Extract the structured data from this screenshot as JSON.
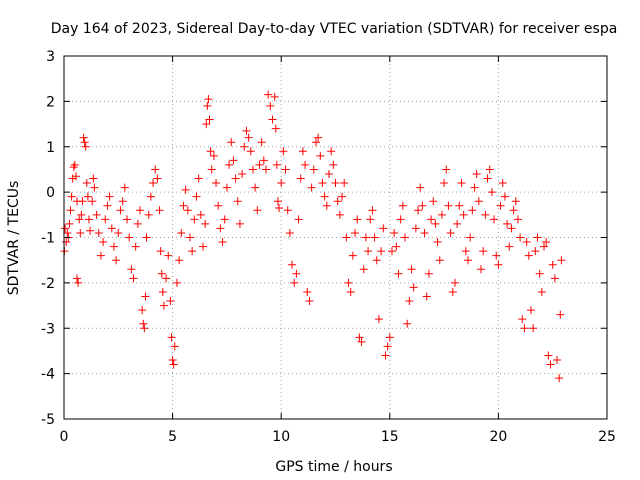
{
  "chart_data": {
    "type": "scatter",
    "title": "Day 164 of 2023, Sidereal Day-to-day VTEC variation (SDTVAR) for receiver espa",
    "xlabel": "GPS time / hours",
    "ylabel": "SDTVAR / TECUs",
    "xlim": [
      0,
      25
    ],
    "ylim": [
      -5,
      3
    ],
    "x_ticks": [
      0,
      5,
      10,
      15,
      20,
      25
    ],
    "y_ticks": [
      -5,
      -4,
      -3,
      -2,
      -1,
      0,
      1,
      2,
      3
    ],
    "x_tick_labels": [
      "0",
      "5",
      "10",
      "15",
      "20",
      "25"
    ],
    "y_tick_labels": [
      "-5",
      "-4",
      "-3",
      "-2",
      "-1",
      "0",
      "1",
      "2",
      "3"
    ],
    "grid": true,
    "marker": "+",
    "marker_color": "#ff0000",
    "series": [
      {
        "name": "SDTVAR",
        "points": [
          [
            0.02,
            -1.3
          ],
          [
            0.05,
            -0.8
          ],
          [
            0.1,
            -1.1
          ],
          [
            0.15,
            -0.9
          ],
          [
            0.2,
            -1.0
          ],
          [
            0.25,
            -0.7
          ],
          [
            0.3,
            -0.4
          ],
          [
            0.35,
            -0.1
          ],
          [
            0.4,
            0.3
          ],
          [
            0.45,
            0.55
          ],
          [
            0.5,
            0.6
          ],
          [
            0.55,
            0.35
          ],
          [
            0.6,
            -0.2
          ],
          [
            0.6,
            -1.9
          ],
          [
            0.65,
            -2.0
          ],
          [
            0.7,
            -0.6
          ],
          [
            0.75,
            -0.9
          ],
          [
            0.8,
            -0.5
          ],
          [
            0.85,
            -0.2
          ],
          [
            0.9,
            1.2
          ],
          [
            0.95,
            1.1
          ],
          [
            1.0,
            1.0
          ],
          [
            1.05,
            0.2
          ],
          [
            1.1,
            -0.1
          ],
          [
            1.15,
            -0.6
          ],
          [
            1.2,
            -0.85
          ],
          [
            1.3,
            -0.2
          ],
          [
            1.35,
            0.3
          ],
          [
            1.4,
            0.1
          ],
          [
            1.5,
            -0.5
          ],
          [
            1.6,
            -0.9
          ],
          [
            1.7,
            -1.4
          ],
          [
            1.8,
            -1.1
          ],
          [
            1.9,
            -0.6
          ],
          [
            2.0,
            -0.3
          ],
          [
            2.1,
            -0.1
          ],
          [
            2.2,
            -0.8
          ],
          [
            2.3,
            -1.2
          ],
          [
            2.4,
            -1.5
          ],
          [
            2.5,
            -0.9
          ],
          [
            2.6,
            -0.4
          ],
          [
            2.7,
            -0.2
          ],
          [
            2.8,
            0.1
          ],
          [
            2.9,
            -0.6
          ],
          [
            3.0,
            -1.0
          ],
          [
            3.1,
            -1.7
          ],
          [
            3.2,
            -1.9
          ],
          [
            3.3,
            -1.2
          ],
          [
            3.4,
            -0.7
          ],
          [
            3.5,
            -0.4
          ],
          [
            3.6,
            -2.6
          ],
          [
            3.65,
            -2.9
          ],
          [
            3.7,
            -3.0
          ],
          [
            3.75,
            -2.3
          ],
          [
            3.8,
            -1.0
          ],
          [
            3.9,
            -0.5
          ],
          [
            4.0,
            -0.1
          ],
          [
            4.1,
            0.2
          ],
          [
            4.2,
            0.5
          ],
          [
            4.3,
            0.3
          ],
          [
            4.4,
            -0.4
          ],
          [
            4.45,
            -1.3
          ],
          [
            4.5,
            -1.8
          ],
          [
            4.55,
            -2.2
          ],
          [
            4.6,
            -2.5
          ],
          [
            4.7,
            -1.9
          ],
          [
            4.8,
            -1.4
          ],
          [
            4.9,
            -2.4
          ],
          [
            4.95,
            -3.2
          ],
          [
            5.0,
            -3.7
          ],
          [
            5.05,
            -3.8
          ],
          [
            5.1,
            -3.4
          ],
          [
            5.2,
            -2.0
          ],
          [
            5.3,
            -1.5
          ],
          [
            5.4,
            -0.9
          ],
          [
            5.5,
            -0.3
          ],
          [
            5.6,
            0.05
          ],
          [
            5.7,
            -0.4
          ],
          [
            5.8,
            -1.0
          ],
          [
            5.9,
            -1.3
          ],
          [
            6.0,
            -0.6
          ],
          [
            6.1,
            -0.1
          ],
          [
            6.2,
            0.3
          ],
          [
            6.3,
            -0.5
          ],
          [
            6.4,
            -1.2
          ],
          [
            6.5,
            -0.7
          ],
          [
            6.55,
            1.5
          ],
          [
            6.6,
            1.9
          ],
          [
            6.65,
            2.05
          ],
          [
            6.7,
            1.6
          ],
          [
            6.75,
            0.9
          ],
          [
            6.8,
            0.5
          ],
          [
            6.9,
            0.8
          ],
          [
            7.0,
            0.2
          ],
          [
            7.1,
            -0.3
          ],
          [
            7.2,
            -0.8
          ],
          [
            7.3,
            -1.1
          ],
          [
            7.4,
            -0.6
          ],
          [
            7.5,
            0.1
          ],
          [
            7.6,
            0.6
          ],
          [
            7.7,
            1.1
          ],
          [
            7.8,
            0.7
          ],
          [
            7.9,
            0.3
          ],
          [
            8.0,
            -0.2
          ],
          [
            8.1,
            -0.7
          ],
          [
            8.2,
            0.4
          ],
          [
            8.3,
            1.0
          ],
          [
            8.4,
            1.35
          ],
          [
            8.5,
            1.2
          ],
          [
            8.6,
            0.9
          ],
          [
            8.7,
            0.5
          ],
          [
            8.8,
            0.1
          ],
          [
            8.9,
            -0.4
          ],
          [
            9.0,
            0.6
          ],
          [
            9.1,
            1.1
          ],
          [
            9.2,
            0.7
          ],
          [
            9.3,
            0.5
          ],
          [
            9.4,
            2.15
          ],
          [
            9.5,
            1.9
          ],
          [
            9.6,
            1.6
          ],
          [
            9.7,
            2.1
          ],
          [
            9.75,
            1.4
          ],
          [
            9.8,
            0.6
          ],
          [
            9.85,
            -0.2
          ],
          [
            9.9,
            -0.35
          ],
          [
            10.0,
            0.2
          ],
          [
            10.1,
            0.9
          ],
          [
            10.2,
            0.5
          ],
          [
            10.3,
            -0.4
          ],
          [
            10.4,
            -0.9
          ],
          [
            10.5,
            -1.6
          ],
          [
            10.6,
            -2.0
          ],
          [
            10.7,
            -1.8
          ],
          [
            10.8,
            -0.6
          ],
          [
            10.9,
            0.3
          ],
          [
            11.0,
            0.9
          ],
          [
            11.1,
            0.6
          ],
          [
            11.2,
            -2.2
          ],
          [
            11.3,
            -2.4
          ],
          [
            11.4,
            0.1
          ],
          [
            11.5,
            0.5
          ],
          [
            11.6,
            1.1
          ],
          [
            11.7,
            1.2
          ],
          [
            11.8,
            0.8
          ],
          [
            11.9,
            0.2
          ],
          [
            12.0,
            -0.1
          ],
          [
            12.1,
            -0.3
          ],
          [
            12.2,
            0.4
          ],
          [
            12.3,
            0.9
          ],
          [
            12.4,
            0.6
          ],
          [
            12.5,
            0.2
          ],
          [
            12.6,
            -0.2
          ],
          [
            12.7,
            -0.5
          ],
          [
            12.8,
            -0.1
          ],
          [
            12.9,
            0.2
          ],
          [
            13.0,
            -1.0
          ],
          [
            13.1,
            -2.0
          ],
          [
            13.2,
            -2.2
          ],
          [
            13.3,
            -1.4
          ],
          [
            13.4,
            -0.9
          ],
          [
            13.5,
            -0.6
          ],
          [
            13.6,
            -3.2
          ],
          [
            13.7,
            -3.3
          ],
          [
            13.8,
            -1.7
          ],
          [
            13.9,
            -1.0
          ],
          [
            14.0,
            -1.3
          ],
          [
            14.1,
            -0.6
          ],
          [
            14.2,
            -0.4
          ],
          [
            14.3,
            -1.0
          ],
          [
            14.4,
            -1.5
          ],
          [
            14.5,
            -2.8
          ],
          [
            14.6,
            -1.3
          ],
          [
            14.7,
            -0.8
          ],
          [
            14.8,
            -3.6
          ],
          [
            14.9,
            -3.4
          ],
          [
            15.0,
            -3.2
          ],
          [
            15.1,
            -1.3
          ],
          [
            15.2,
            -0.9
          ],
          [
            15.3,
            -1.2
          ],
          [
            15.4,
            -1.8
          ],
          [
            15.5,
            -0.6
          ],
          [
            15.6,
            -0.3
          ],
          [
            15.7,
            -1.0
          ],
          [
            15.8,
            -2.9
          ],
          [
            15.9,
            -2.4
          ],
          [
            16.0,
            -1.7
          ],
          [
            16.1,
            -2.1
          ],
          [
            16.2,
            -0.8
          ],
          [
            16.3,
            -0.4
          ],
          [
            16.4,
            0.1
          ],
          [
            16.5,
            -0.3
          ],
          [
            16.6,
            -0.9
          ],
          [
            16.7,
            -2.3
          ],
          [
            16.8,
            -1.8
          ],
          [
            16.9,
            -0.6
          ],
          [
            17.0,
            -0.2
          ],
          [
            17.1,
            -0.7
          ],
          [
            17.2,
            -1.1
          ],
          [
            17.3,
            -1.5
          ],
          [
            17.4,
            -0.5
          ],
          [
            17.5,
            0.2
          ],
          [
            17.6,
            0.5
          ],
          [
            17.7,
            -0.3
          ],
          [
            17.8,
            -0.9
          ],
          [
            17.9,
            -2.2
          ],
          [
            18.0,
            -2.0
          ],
          [
            18.1,
            -0.7
          ],
          [
            18.2,
            -0.3
          ],
          [
            18.3,
            0.2
          ],
          [
            18.4,
            -0.5
          ],
          [
            18.5,
            -1.3
          ],
          [
            18.6,
            -1.5
          ],
          [
            18.7,
            -1.0
          ],
          [
            18.8,
            -0.4
          ],
          [
            18.9,
            0.1
          ],
          [
            19.0,
            0.4
          ],
          [
            19.1,
            -0.2
          ],
          [
            19.2,
            -1.7
          ],
          [
            19.3,
            -1.3
          ],
          [
            19.4,
            -0.5
          ],
          [
            19.5,
            0.3
          ],
          [
            19.6,
            0.5
          ],
          [
            19.7,
            0.0
          ],
          [
            19.8,
            -0.6
          ],
          [
            19.9,
            -1.4
          ],
          [
            20.0,
            -1.6
          ],
          [
            20.1,
            -0.3
          ],
          [
            20.2,
            0.2
          ],
          [
            20.3,
            -0.1
          ],
          [
            20.4,
            -0.7
          ],
          [
            20.5,
            -1.2
          ],
          [
            20.6,
            -0.8
          ],
          [
            20.7,
            -0.4
          ],
          [
            20.8,
            -0.2
          ],
          [
            20.9,
            -0.6
          ],
          [
            21.0,
            -1.0
          ],
          [
            21.1,
            -2.8
          ],
          [
            21.2,
            -3.0
          ],
          [
            21.3,
            -1.1
          ],
          [
            21.4,
            -1.4
          ],
          [
            21.5,
            -2.6
          ],
          [
            21.6,
            -3.0
          ],
          [
            21.7,
            -1.3
          ],
          [
            21.8,
            -1.0
          ],
          [
            21.9,
            -1.8
          ],
          [
            22.0,
            -2.2
          ],
          [
            22.1,
            -1.2
          ],
          [
            22.2,
            -1.1
          ],
          [
            22.3,
            -3.6
          ],
          [
            22.4,
            -3.8
          ],
          [
            22.5,
            -1.6
          ],
          [
            22.6,
            -1.9
          ],
          [
            22.7,
            -3.7
          ],
          [
            22.8,
            -4.1
          ],
          [
            22.85,
            -2.7
          ],
          [
            22.9,
            -1.5
          ]
        ]
      }
    ]
  }
}
